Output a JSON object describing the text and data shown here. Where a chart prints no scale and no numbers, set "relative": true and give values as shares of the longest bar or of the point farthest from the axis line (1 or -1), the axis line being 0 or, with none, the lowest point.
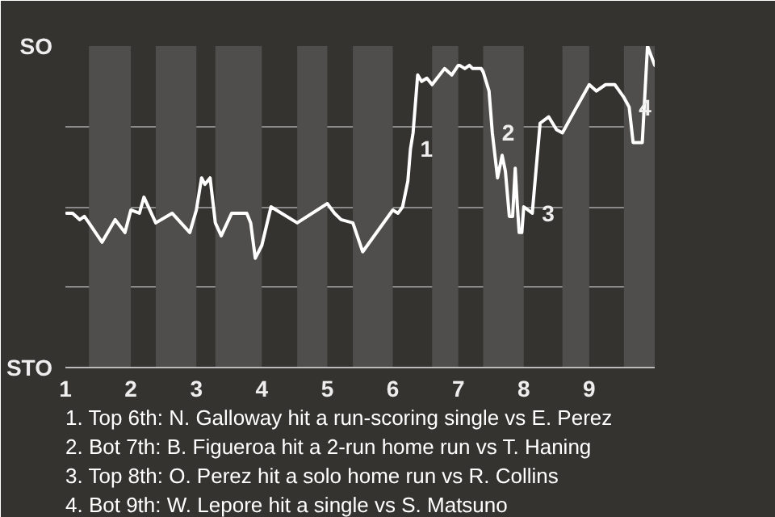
{
  "chart_data": {
    "type": "line",
    "relative": true,
    "x": [
      1.02,
      1.11,
      1.22,
      1.29,
      1.36,
      1.56,
      1.76,
      1.91,
      2.0,
      2.13,
      2.2,
      2.38,
      2.63,
      2.9,
      3.0,
      3.08,
      3.13,
      3.21,
      3.29,
      3.38,
      3.54,
      3.77,
      3.83,
      3.9,
      4.0,
      4.14,
      4.54,
      5.0,
      5.11,
      5.21,
      5.39,
      5.54,
      6.0,
      6.08,
      6.15,
      6.23,
      6.27,
      6.31,
      6.38,
      6.44,
      6.52,
      6.6,
      6.79,
      6.9,
      7.0,
      7.02,
      7.1,
      7.17,
      7.22,
      7.35,
      7.38,
      7.47,
      7.52,
      7.6,
      7.67,
      7.72,
      7.78,
      7.83,
      7.87,
      7.9,
      7.93,
      7.97,
      8.0,
      8.13,
      8.25,
      8.38,
      8.5,
      8.59,
      8.78,
      9.0,
      9.11,
      9.25,
      9.39,
      9.53,
      9.61,
      9.67,
      9.81,
      9.89,
      10.0
    ],
    "series": [
      {
        "color": "#ffffff",
        "values": [
          0.48,
          0.48,
          0.46,
          0.47,
          0.45,
          0.39,
          0.46,
          0.42,
          0.49,
          0.48,
          0.53,
          0.45,
          0.48,
          0.42,
          0.49,
          0.59,
          0.57,
          0.59,
          0.45,
          0.41,
          0.48,
          0.48,
          0.45,
          0.34,
          0.38,
          0.5,
          0.45,
          0.51,
          0.48,
          0.46,
          0.45,
          0.36,
          0.49,
          0.48,
          0.5,
          0.58,
          0.68,
          0.73,
          0.91,
          0.89,
          0.9,
          0.88,
          0.93,
          0.91,
          0.94,
          0.94,
          0.93,
          0.94,
          0.93,
          0.93,
          0.92,
          0.86,
          0.73,
          0.59,
          0.66,
          0.61,
          0.47,
          0.47,
          0.62,
          0.51,
          0.42,
          0.42,
          0.5,
          0.48,
          0.76,
          0.78,
          0.74,
          0.73,
          0.8,
          0.88,
          0.86,
          0.88,
          0.88,
          0.84,
          0.81,
          0.7,
          0.7,
          1,
          0.94
        ]
      }
    ],
    "xlim": [
      1,
      10
    ],
    "xticks": [
      1,
      2,
      3,
      4,
      5,
      6,
      7,
      8,
      9
    ],
    "grid": "y",
    "marker": "none",
    "line_style": "solid",
    "bands": [
      {
        "axis": "x",
        "from": 1.36,
        "to": 2,
        "color": "#4f4e4c"
      },
      {
        "axis": "x",
        "from": 2.38,
        "to": 3,
        "color": "#4f4e4c"
      },
      {
        "axis": "x",
        "from": 3.29,
        "to": 4,
        "color": "#4f4e4c"
      },
      {
        "axis": "x",
        "from": 4.54,
        "to": 5,
        "color": "#4f4e4c"
      },
      {
        "axis": "x",
        "from": 5.39,
        "to": 6,
        "color": "#4f4e4c"
      },
      {
        "axis": "x",
        "from": 6.6,
        "to": 7,
        "color": "#4f4e4c"
      },
      {
        "axis": "x",
        "from": 7.38,
        "to": 8,
        "color": "#4f4e4c"
      },
      {
        "axis": "x",
        "from": 8.59,
        "to": 9,
        "color": "#4f4e4c"
      },
      {
        "axis": "x",
        "from": 9.53,
        "to": 10,
        "color": "#4f4e4c"
      }
    ],
    "annotations": [
      "SO",
      "STO",
      {
        "text": "1",
        "x": 6.27,
        "y": 0.68
      },
      {
        "text": "2",
        "x": 7.52,
        "y": 0.73
      },
      {
        "text": "3",
        "x": 8.13,
        "y": 0.48
      },
      {
        "text": "4",
        "x": 9.61,
        "y": 0.81
      },
      "1. Top 6th: N. Galloway hit a run-scoring single vs E. Perez",
      "2. Bot 7th: B. Figueroa hit a 2-run home run vs T. Haning",
      "3. Top 8th: O. Perez hit a solo home run vs R. Collins",
      "4. Bot 9th: W. Lepore hit a single vs S. Matsuno"
    ]
  }
}
